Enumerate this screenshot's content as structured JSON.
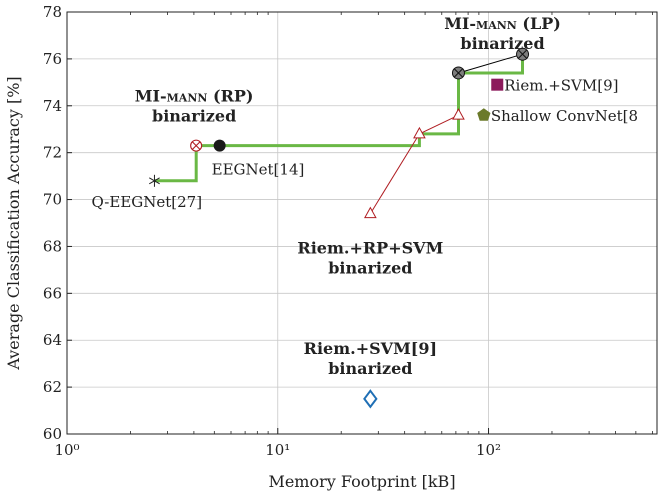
{
  "chart_data": {
    "type": "scatter",
    "title": "",
    "xlabel": "Memory Footprint [kB]",
    "ylabel": "Average Classification Accuracy [%]",
    "xscale": "log",
    "xlim": [
      1,
      630
    ],
    "ylim": [
      60,
      78
    ],
    "x_ticks": [
      {
        "value": 1,
        "label": "10⁰"
      },
      {
        "value": 10,
        "label": "10¹"
      },
      {
        "value": 100,
        "label": "10²"
      }
    ],
    "y_ticks": [
      60,
      62,
      64,
      66,
      68,
      70,
      72,
      74,
      76,
      78
    ],
    "grid": true,
    "colors": {
      "pareto": "#6ab845",
      "riem_rp": "#b01e23",
      "mi_lp_line": "#000000",
      "riem_svm": "#8c1a5c",
      "shallow": "#6b7a2a",
      "riem_svm_bin": "#1f6fb5",
      "grid": "#c8c8c8"
    },
    "pareto_front": {
      "x": [
        2.6,
        4.1,
        4.1,
        47,
        47,
        72,
        72,
        145,
        145
      ],
      "y": [
        70.8,
        70.8,
        72.3,
        72.3,
        72.8,
        72.8,
        75.4,
        75.4,
        76.2
      ]
    },
    "series": [
      {
        "marker": "asterisk",
        "color": "#222222",
        "points": [
          {
            "x": 2.6,
            "y": 70.8
          }
        ]
      },
      {
        "marker": "circle-filled",
        "color": "#1a1a1a",
        "points": [
          {
            "x": 5.3,
            "y": 72.3
          }
        ]
      },
      {
        "marker": "circle-cross",
        "color": "#b01e23",
        "points": [
          {
            "x": 4.1,
            "y": 72.3
          }
        ]
      },
      {
        "marker": "triangle-open",
        "color": "#b01e23",
        "line": true,
        "points": [
          {
            "x": 27.5,
            "y": 69.4
          },
          {
            "x": 47,
            "y": 72.8
          },
          {
            "x": 72,
            "y": 73.6
          }
        ]
      },
      {
        "marker": "circle-cross-gray",
        "color": "#000000",
        "line": true,
        "points": [
          {
            "x": 72,
            "y": 75.4
          },
          {
            "x": 145,
            "y": 76.2
          }
        ]
      },
      {
        "marker": "square",
        "color": "#8c1a5c",
        "points": [
          {
            "x": 110,
            "y": 74.9
          }
        ]
      },
      {
        "marker": "pentagon",
        "color": "#6b7a2a",
        "points": [
          {
            "x": 95,
            "y": 73.6
          }
        ]
      },
      {
        "marker": "diamond-open",
        "color": "#1f6fb5",
        "points": [
          {
            "x": 27.5,
            "y": 61.5
          }
        ]
      }
    ],
    "annotations": [
      {
        "text": "Q-EEGNet[27]",
        "x": 2.6,
        "y": 70.8,
        "bold": false,
        "smallcaps": false,
        "anchor": "upper-left-of"
      },
      {
        "text": "EEGNet[14]",
        "x": 5.3,
        "y": 72.3,
        "bold": false,
        "smallcaps": false,
        "anchor": "below"
      },
      {
        "text": "Riem.+SVM[9]",
        "x": 110,
        "y": 74.9,
        "bold": false,
        "smallcaps": false,
        "anchor": "right"
      },
      {
        "text": "Shallow ConvNet[8",
        "x": 95,
        "y": 73.6,
        "bold": false,
        "smallcaps": false,
        "anchor": "right"
      },
      {
        "text": "MI-mann (RP)",
        "x": 4.1,
        "y": 72.3,
        "bold": true,
        "smallcaps": true,
        "anchor": "above-1"
      },
      {
        "text": "binarized",
        "x": 4.1,
        "y": 72.3,
        "bold": true,
        "smallcaps": false,
        "anchor": "above-2"
      },
      {
        "text": "MI-mann (LP)",
        "x": 145,
        "y": 76.2,
        "bold": true,
        "smallcaps": true,
        "anchor": "above-1"
      },
      {
        "text": "binarized",
        "x": 145,
        "y": 76.2,
        "bold": true,
        "smallcaps": false,
        "anchor": "above-2"
      },
      {
        "text": "Riem.+RP+SVM",
        "x": 27.5,
        "y": 69.4,
        "bold": true,
        "smallcaps": false,
        "anchor": "below-1"
      },
      {
        "text": "binarized",
        "x": 27.5,
        "y": 69.4,
        "bold": true,
        "smallcaps": false,
        "anchor": "below-2"
      },
      {
        "text": "Riem.+SVM[9]",
        "x": 27.5,
        "y": 61.5,
        "bold": true,
        "smallcaps": false,
        "anchor": "above-1"
      },
      {
        "text": "binarized",
        "x": 27.5,
        "y": 61.5,
        "bold": true,
        "smallcaps": false,
        "anchor": "above-2"
      }
    ]
  }
}
